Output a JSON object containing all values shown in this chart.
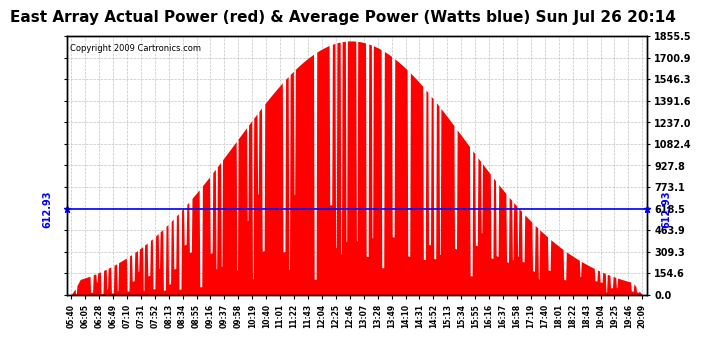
{
  "title": "East Array Actual Power (red) & Average Power (Watts blue) Sun Jul 26 20:14",
  "copyright_text": "Copyright 2009 Cartronics.com",
  "avg_power": 612.93,
  "y_ticks": [
    0.0,
    154.6,
    309.3,
    463.9,
    618.5,
    773.1,
    927.8,
    1082.4,
    1237.0,
    1391.6,
    1546.3,
    1700.9,
    1855.5
  ],
  "y_min": 0.0,
  "y_max": 1855.5,
  "x_labels": [
    "05:40",
    "06:05",
    "06:28",
    "06:49",
    "07:10",
    "07:31",
    "07:52",
    "08:13",
    "08:34",
    "08:55",
    "09:16",
    "09:37",
    "09:58",
    "10:19",
    "10:40",
    "11:01",
    "11:22",
    "11:43",
    "12:04",
    "12:25",
    "12:46",
    "13:07",
    "13:28",
    "13:49",
    "14:10",
    "14:31",
    "14:52",
    "15:13",
    "15:34",
    "15:55",
    "16:16",
    "16:37",
    "16:58",
    "17:19",
    "17:40",
    "18:01",
    "18:22",
    "18:43",
    "19:04",
    "19:25",
    "19:46",
    "20:09"
  ],
  "bg_color": "#ffffff",
  "fill_color": "#ff0000",
  "line_color": "#0000ff",
  "title_fontsize": 11,
  "avg_label": "612.93",
  "grid_color": "#aaaaaa",
  "grid_style": "--"
}
